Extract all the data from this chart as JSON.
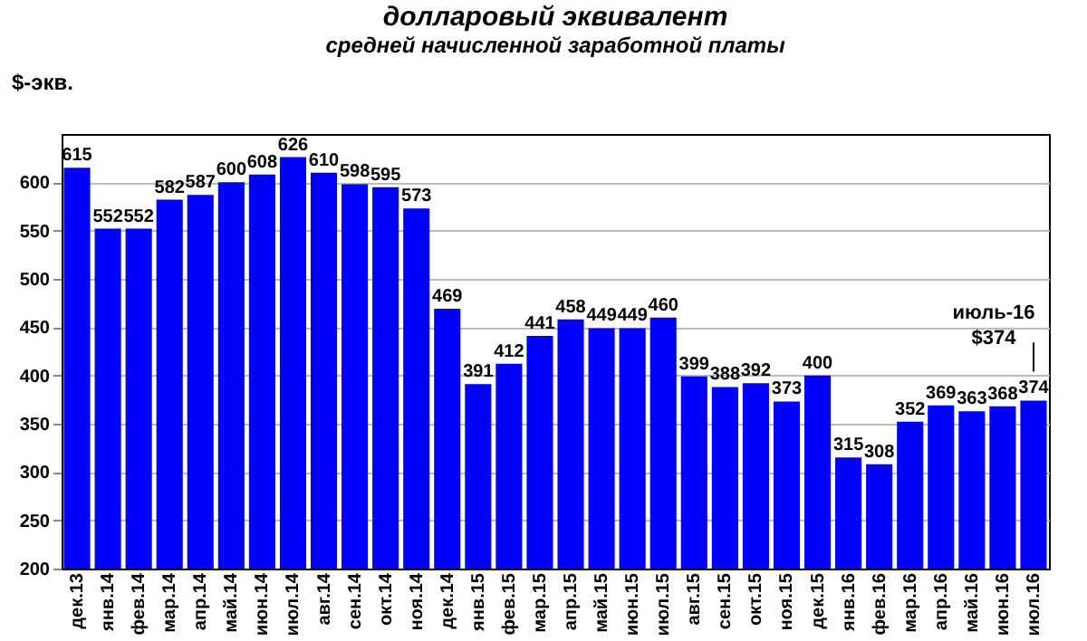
{
  "chart_data": {
    "type": "bar",
    "title": "долларовый эквивалент",
    "subtitle": "средней начисленной заработной платы",
    "ylabel": "$-экв.",
    "categories": [
      "дек.13",
      "янв.14",
      "фев.14",
      "мар.14",
      "апр.14",
      "май.14",
      "июн.14",
      "июл.14",
      "авг.14",
      "сен.14",
      "окт.14",
      "ноя.14",
      "дек.14",
      "янв.15",
      "фев.15",
      "мар.15",
      "апр.15",
      "май.15",
      "июн.15",
      "июл.15",
      "авг.15",
      "сен.15",
      "окт.15",
      "ноя.15",
      "дек.15",
      "янв.16",
      "фев.16",
      "мар.16",
      "апр.16",
      "май.16",
      "июн.16",
      "июл.16"
    ],
    "values": [
      615,
      552,
      552,
      582,
      587,
      600,
      608,
      626,
      610,
      598,
      595,
      573,
      469,
      391,
      412,
      441,
      458,
      449,
      449,
      460,
      399,
      388,
      392,
      373,
      400,
      315,
      308,
      352,
      369,
      363,
      368,
      374
    ],
    "color": "#0000ff",
    "ylim": [
      200,
      650
    ],
    "yticks": [
      200,
      250,
      300,
      350,
      400,
      450,
      500,
      550,
      600
    ],
    "grid": "y",
    "data_labels": true,
    "annotations": [
      {
        "text": "июль-16\n$374",
        "x": "июл.16",
        "y": 374
      }
    ]
  }
}
